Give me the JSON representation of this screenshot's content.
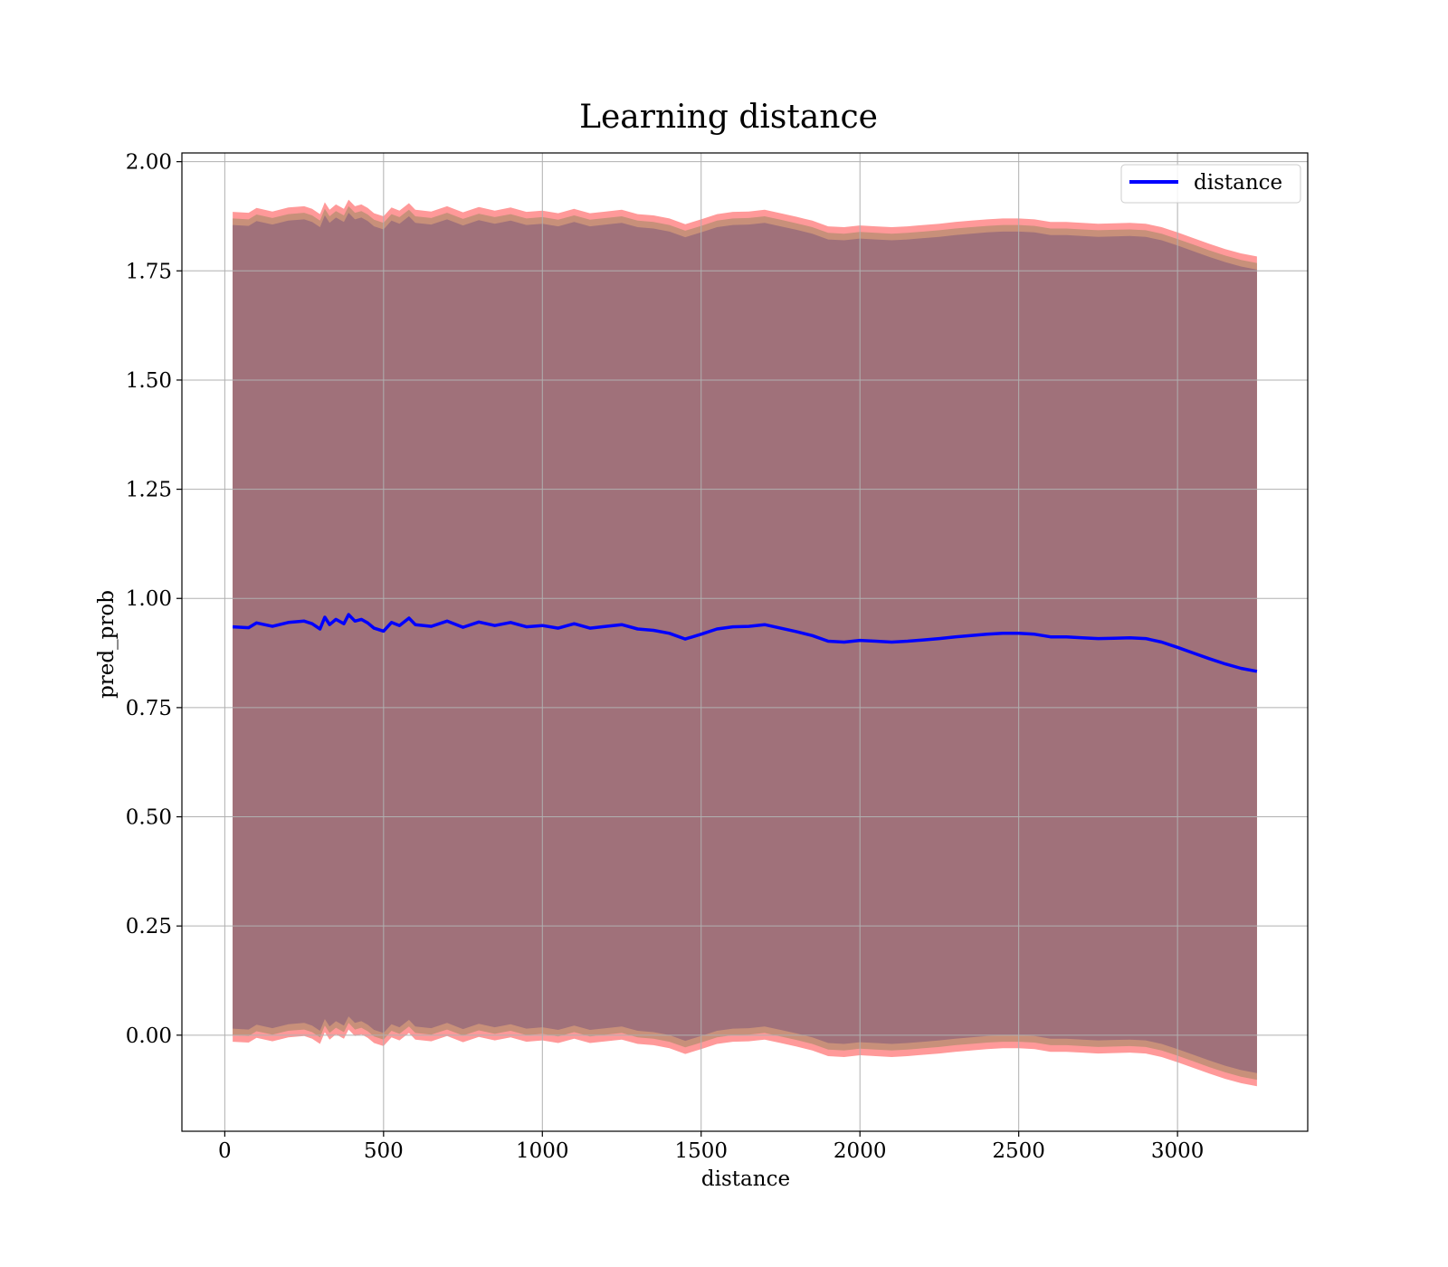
{
  "chart_data": {
    "type": "line",
    "title": "Learning distance",
    "xlabel": "distance",
    "ylabel": "pred_prob",
    "xlim": [
      -135,
      3410
    ],
    "ylim": [
      -0.22,
      2.02
    ],
    "xticks": [
      0,
      500,
      1000,
      1500,
      2000,
      2500,
      3000
    ],
    "yticks": [
      0.0,
      0.25,
      0.5,
      0.75,
      1.0,
      1.25,
      1.5,
      1.75,
      2.0
    ],
    "xtick_labels": [
      "0",
      "500",
      "1000",
      "1500",
      "2000",
      "2500",
      "3000"
    ],
    "ytick_labels": [
      "0.00",
      "0.25",
      "0.50",
      "0.75",
      "1.00",
      "1.25",
      "1.50",
      "1.75",
      "2.00"
    ],
    "grid": true,
    "legend_position": "top-right",
    "colors": {
      "line": "#0000ff",
      "band_outer": "#ff9999",
      "band_middle": "#c8907a",
      "band_inner": "#a0717a",
      "grid": "#b0b0b0"
    },
    "series": [
      {
        "name": "distance",
        "x": [
          25,
          75,
          100,
          150,
          200,
          250,
          275,
          300,
          315,
          330,
          350,
          375,
          390,
          410,
          430,
          450,
          470,
          500,
          525,
          550,
          580,
          600,
          650,
          700,
          750,
          800,
          850,
          900,
          950,
          1000,
          1050,
          1100,
          1150,
          1200,
          1250,
          1300,
          1350,
          1400,
          1450,
          1500,
          1550,
          1600,
          1650,
          1700,
          1750,
          1800,
          1850,
          1900,
          1950,
          2000,
          2050,
          2100,
          2150,
          2200,
          2250,
          2300,
          2350,
          2400,
          2450,
          2500,
          2550,
          2600,
          2650,
          2700,
          2750,
          2800,
          2850,
          2900,
          2950,
          3000,
          3050,
          3100,
          3150,
          3200,
          3250
        ],
        "y": [
          0.935,
          0.933,
          0.944,
          0.936,
          0.945,
          0.948,
          0.942,
          0.93,
          0.957,
          0.94,
          0.952,
          0.942,
          0.963,
          0.948,
          0.952,
          0.944,
          0.932,
          0.925,
          0.945,
          0.938,
          0.955,
          0.94,
          0.936,
          0.948,
          0.934,
          0.946,
          0.938,
          0.945,
          0.935,
          0.938,
          0.932,
          0.942,
          0.932,
          0.936,
          0.94,
          0.93,
          0.927,
          0.92,
          0.907,
          0.918,
          0.93,
          0.935,
          0.936,
          0.94,
          0.932,
          0.924,
          0.915,
          0.902,
          0.9,
          0.904,
          0.902,
          0.9,
          0.902,
          0.905,
          0.908,
          0.912,
          0.915,
          0.918,
          0.92,
          0.92,
          0.918,
          0.912,
          0.912,
          0.91,
          0.908,
          0.909,
          0.91,
          0.908,
          0.9,
          0.888,
          0.875,
          0.862,
          0.85,
          0.84,
          0.833
        ]
      }
    ],
    "band_halfwidths": {
      "outer": 0.95,
      "middle": 0.935,
      "inner": 0.92
    }
  }
}
